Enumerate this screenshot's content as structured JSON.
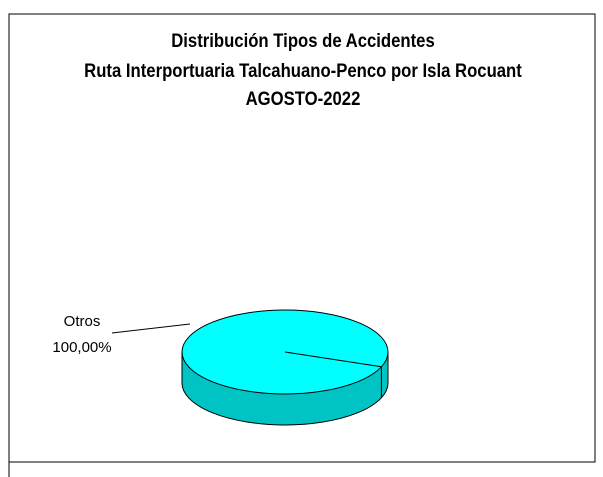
{
  "chart_data": {
    "type": "pie",
    "title": [
      "Distribución Tipos de Accidentes",
      "Ruta Interportuaria Talcahuano-Penco por Isla Rocuant",
      "AGOSTO-2022"
    ],
    "categories": [
      "Otros"
    ],
    "values": [
      100
    ],
    "value_labels": [
      "100,00%"
    ],
    "colors": [
      "#00ffff"
    ],
    "side_colors": [
      "#00c4c4"
    ]
  }
}
